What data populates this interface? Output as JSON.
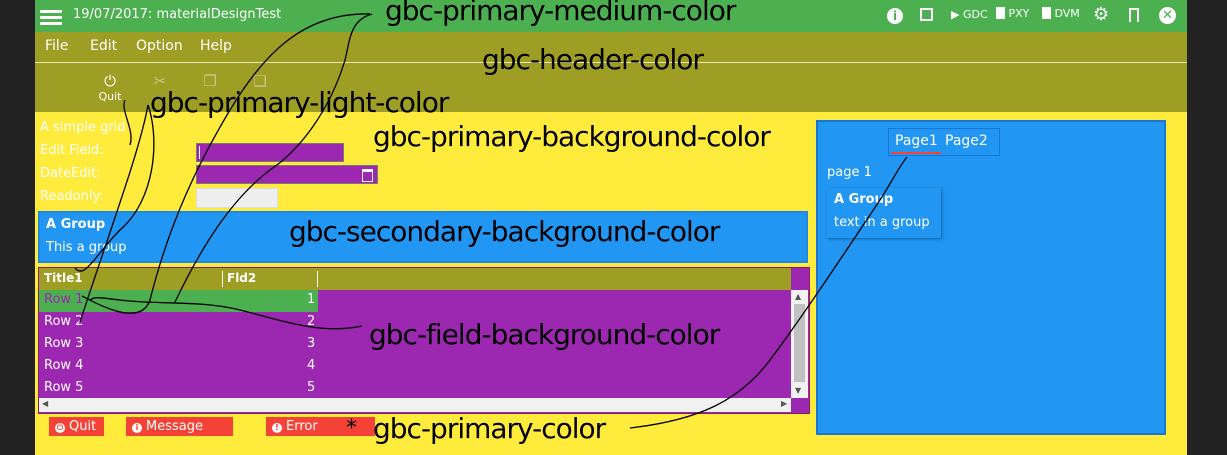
{
  "titlebar": {
    "title": "19/07/2017: materialDesignTest",
    "actions": [
      {
        "icon": "info-icon"
      },
      {
        "icon": "chip-icon"
      },
      {
        "icon": "play-icon",
        "label": "GDC"
      },
      {
        "icon": "file-icon",
        "label": "PXY"
      },
      {
        "icon": "file-icon",
        "label": "DVM"
      },
      {
        "icon": "gear-icon"
      },
      {
        "icon": "bookmark-icon"
      },
      {
        "icon": "close-icon"
      }
    ]
  },
  "menu": [
    "File",
    "Edit",
    "Option",
    "Help"
  ],
  "toolbar": {
    "quit_label": "Quit"
  },
  "form": {
    "grid_label": "A simple grid",
    "edit_label": "Edit Field:",
    "date_label": "DateEdit:",
    "readonly_label": "Readonly:"
  },
  "group": {
    "title": "A Group",
    "text": "This a group"
  },
  "table": {
    "columns": [
      "Title1",
      "Fld2"
    ],
    "rows": [
      [
        "Row 1",
        "1"
      ],
      [
        "Row 2",
        "2"
      ],
      [
        "Row 3",
        "3"
      ],
      [
        "Row 4",
        "4"
      ],
      [
        "Row 5",
        "5"
      ]
    ]
  },
  "buttons": {
    "quit": "Quit",
    "message": "Message",
    "error": "Error"
  },
  "right_panel": {
    "tabs": [
      "Page1",
      "Page2"
    ],
    "page_text": "page 1",
    "group_title": "A Group",
    "group_text": "text in a group"
  },
  "annotations": {
    "primary_medium": "gbc-primary-medium-color",
    "header": "gbc-header-color",
    "primary_light": "gbc-primary-light-color",
    "primary_background": "gbc-primary-background-color",
    "secondary_background": "gbc-secondary-background-color",
    "field_background": "gbc-field-background-color",
    "primary": "gbc-primary-color"
  },
  "colors": {
    "primary_medium": "#4caf50",
    "header": "#9e9d24",
    "primary_background": "#ffeb3b",
    "secondary_background": "#2196f3",
    "field_background": "#9c27b0",
    "primary": "#f44336"
  }
}
